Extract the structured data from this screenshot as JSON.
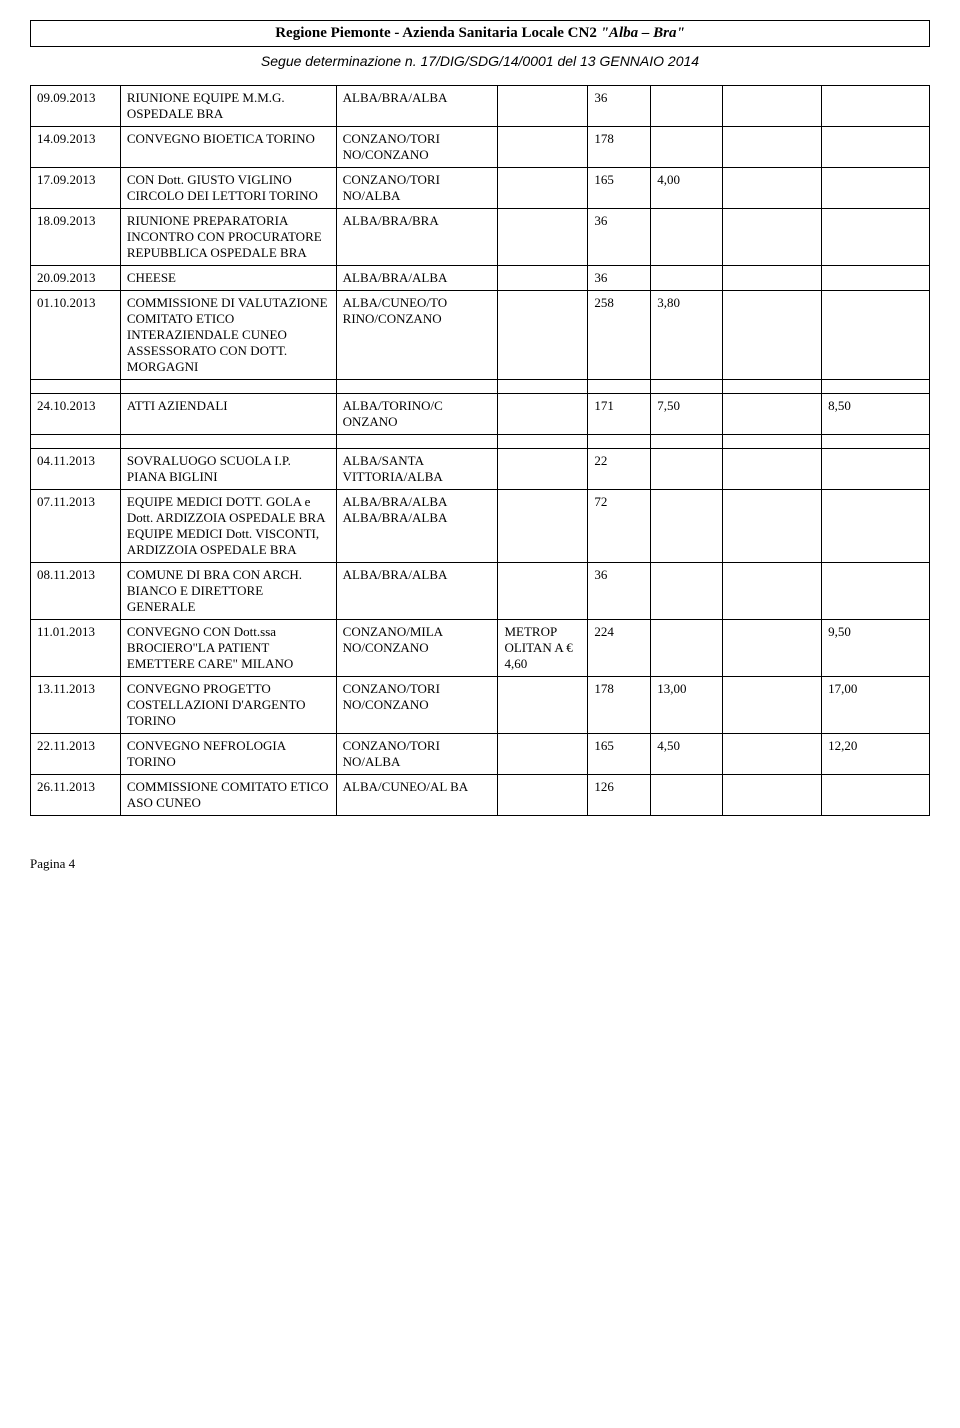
{
  "header": {
    "text_prefix": "Regione Piemonte    -   Azienda Sanitaria Locale CN2   ",
    "text_italic": "\"Alba – Bra\""
  },
  "subheader": {
    "text": "Segue determinazione n. 17/DIG/SDG/14/0001 del 13 GENNAIO 2014"
  },
  "footer": {
    "text": "Pagina 4"
  },
  "table": {
    "columns_widths": [
      "10%",
      "24%",
      "18%",
      "10%",
      "7%",
      "8%",
      "11%",
      "12%"
    ],
    "rows": [
      {
        "date": "09.09.2013",
        "desc": "RIUNIONE EQUIPE M.M.G. OSPEDALE BRA",
        "route": "ALBA/BRA/ALBA",
        "c4": "",
        "c5": "36",
        "c6": "",
        "c7": "",
        "c8": ""
      },
      {
        "date": "14.09.2013",
        "desc": "CONVEGNO BIOETICA TORINO",
        "route": "CONZANO/TORI NO/CONZANO",
        "c4": "",
        "c5": "178",
        "c6": "",
        "c7": "",
        "c8": ""
      },
      {
        "date": "17.09.2013",
        "desc": "CON Dott. GIUSTO VIGLINO CIRCOLO DEI LETTORI TORINO",
        "route": "CONZANO/TORI NO/ALBA",
        "c4": "",
        "c5": "165",
        "c6": "4,00",
        "c7": "",
        "c8": ""
      },
      {
        "date": "18.09.2013",
        "desc": "RIUNIONE PREPARATORIA INCONTRO CON PROCURATORE REPUBBLICA OSPEDALE BRA",
        "route": "ALBA/BRA/BRA",
        "c4": "",
        "c5": "36",
        "c6": "",
        "c7": "",
        "c8": ""
      },
      {
        "date": "20.09.2013",
        "desc": "CHEESE",
        "route": "ALBA/BRA/ALBA",
        "c4": "",
        "c5": "36",
        "c6": "",
        "c7": "",
        "c8": ""
      },
      {
        "date": "01.10.2013",
        "desc": "COMMISSIONE DI VALUTAZIONE COMITATO ETICO INTERAZIENDALE CUNEO ASSESSORATO CON DOTT. MORGAGNI",
        "route": "ALBA/CUNEO/TO RINO/CONZANO",
        "c4": "",
        "c5": "258",
        "c6": "3,80",
        "c7": "",
        "c8": ""
      },
      {
        "spacer": true
      },
      {
        "date": "24.10.2013",
        "desc": "ATTI AZIENDALI",
        "route": "ALBA/TORINO/C ONZANO",
        "c4": "",
        "c5": "171",
        "c6": "7,50",
        "c7": "",
        "c8": "8,50"
      },
      {
        "spacer": true
      },
      {
        "date": "04.11.2013",
        "desc": "SOVRALUOGO SCUOLA I.P. PIANA BIGLINI",
        "route": "ALBA/SANTA VITTORIA/ALBA",
        "c4": "",
        "c5": "22",
        "c6": "",
        "c7": "",
        "c8": ""
      },
      {
        "date": "07.11.2013",
        "desc": "EQUIPE MEDICI DOTT. GOLA e Dott. ARDIZZOIA OSPEDALE BRA EQUIPE MEDICI Dott. VISCONTI, ARDIZZOIA OSPEDALE BRA",
        "route": "ALBA/BRA/ALBA ALBA/BRA/ALBA",
        "c4": "",
        "c5": "72",
        "c6": "",
        "c7": "",
        "c8": ""
      },
      {
        "date": "08.11.2013",
        "desc": "COMUNE DI BRA CON ARCH. BIANCO E DIRETTORE GENERALE",
        "route": "ALBA/BRA/ALBA",
        "c4": "",
        "c5": "36",
        "c6": "",
        "c7": "",
        "c8": ""
      },
      {
        "date": "11.01.2013",
        "desc": "CONVEGNO CON Dott.ssa BROCIERO\"LA PATIENT EMETTERE CARE\" MILANO",
        "route": "CONZANO/MILA NO/CONZANO",
        "c4": "METROP OLITAN A € 4,60",
        "c5": "224",
        "c6": "",
        "c7": "",
        "c8": "9,50"
      },
      {
        "date": "13.11.2013",
        "desc": "CONVEGNO PROGETTO COSTELLAZIONI D'ARGENTO TORINO",
        "route": "CONZANO/TORI NO/CONZANO",
        "c4": "",
        "c5": "178",
        "c6": "13,00",
        "c7": "",
        "c8": "17,00"
      },
      {
        "date": "22.11.2013",
        "desc": "CONVEGNO NEFROLOGIA TORINO",
        "route": "CONZANO/TORI NO/ALBA",
        "c4": "",
        "c5": "165",
        "c6": "4,50",
        "c7": "",
        "c8": "12,20"
      },
      {
        "date": "26.11.2013",
        "desc": "COMMISSIONE COMITATO ETICO ASO CUNEO",
        "route": "ALBA/CUNEO/AL BA",
        "c4": "",
        "c5": "126",
        "c6": "",
        "c7": "",
        "c8": ""
      }
    ]
  }
}
